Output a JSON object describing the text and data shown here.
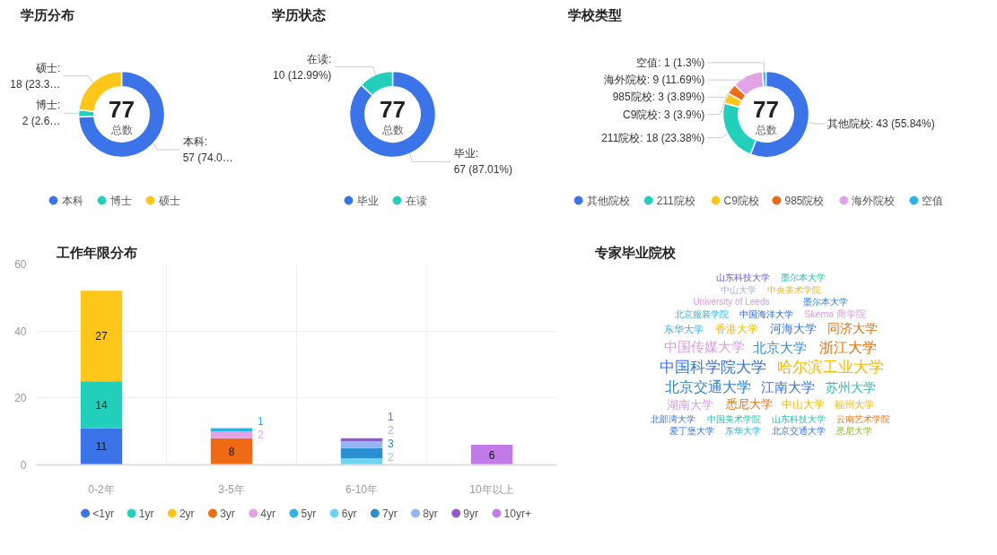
{
  "chart_data": [
    {
      "type": "donut",
      "title": "学历分布",
      "categories": [
        "本科",
        "博士",
        "硕士"
      ],
      "values": [
        57,
        2,
        18
      ],
      "colors": [
        "#3b73e8",
        "#22cfbb",
        "#fec619"
      ],
      "value_labels": [
        "本科:\n57 (74.0…",
        "博士:\n2 (2.6…",
        "硕士:\n18 (23.3…"
      ],
      "annotations": [
        "77",
        "总数"
      ],
      "legend": "bottom"
    },
    {
      "type": "donut",
      "title": "学历状态",
      "categories": [
        "毕业",
        "在读"
      ],
      "values": [
        67,
        10
      ],
      "colors": [
        "#3b73e8",
        "#22cfbb"
      ],
      "value_labels": [
        "毕业:\n67 (87.01%)",
        "在读:\n10 (12.99%)"
      ],
      "annotations": [
        "77",
        "总数"
      ],
      "legend": "bottom"
    },
    {
      "type": "donut",
      "title": "学校类型",
      "categories": [
        "其他院校",
        "211院校",
        "C9院校",
        "985院校",
        "海外院校",
        "空值"
      ],
      "values": [
        43,
        18,
        3,
        3,
        9,
        1
      ],
      "colors": [
        "#3b73e8",
        "#22cfbb",
        "#fec619",
        "#ee6a14",
        "#e0a4e6",
        "#2cb3e8"
      ],
      "value_labels": [
        "其他院校: 43 (55.84%)",
        "211院校: 18 (23.38%)",
        "C9院校: 3 (3.9%)",
        "985院校: 3 (3.89%)",
        "海外院校: 9 (11.69%)",
        "空值: 1 (1.3%)"
      ],
      "annotations": [
        "77",
        "总数"
      ],
      "legend": "bottom"
    },
    {
      "type": "bar",
      "title": "工作年限分布",
      "categories": [
        "0-2年",
        "3-5年",
        "6-10年",
        "10年以上"
      ],
      "stacked": true,
      "ylim": [
        0,
        60
      ],
      "yticks": [
        0,
        20,
        40,
        60
      ],
      "grid": true,
      "legend": "bottom",
      "data_labels": true,
      "series": [
        {
          "name": "<1yr",
          "color": "#3b73e8",
          "values": [
            11,
            null,
            null,
            null
          ]
        },
        {
          "name": "1yr",
          "color": "#22cfbb",
          "values": [
            14,
            null,
            null,
            null
          ]
        },
        {
          "name": "2yr",
          "color": "#fec619",
          "values": [
            27,
            null,
            null,
            null
          ]
        },
        {
          "name": "3yr",
          "color": "#ee6a14",
          "values": [
            null,
            8,
            null,
            null
          ]
        },
        {
          "name": "4yr",
          "color": "#e0a4e6",
          "values": [
            null,
            2,
            null,
            null
          ]
        },
        {
          "name": "5yr",
          "color": "#2cb3e8",
          "values": [
            null,
            1,
            null,
            null
          ]
        },
        {
          "name": "6yr",
          "color": "#6fd3ee",
          "values": [
            null,
            null,
            2,
            null
          ]
        },
        {
          "name": "7yr",
          "color": "#2a8fd0",
          "values": [
            null,
            null,
            3,
            null
          ]
        },
        {
          "name": "8yr",
          "color": "#93b5f5",
          "values": [
            null,
            null,
            2,
            null
          ]
        },
        {
          "name": "9yr",
          "color": "#8e5cd0",
          "values": [
            null,
            null,
            1,
            null
          ]
        },
        {
          "name": "10yr+",
          "color": "#c27ae8",
          "values": [
            null,
            null,
            null,
            6
          ]
        }
      ]
    },
    {
      "type": "other",
      "title": "专家毕业院校",
      "annotations": [
        "中国科学院大学",
        "哈尔滨工业大学",
        "浙江大学",
        "北京交通大学",
        "北京大学",
        "江南大学",
        "中国传媒大学",
        "苏州大学",
        "同济大学",
        "湖南大学",
        "河海大学",
        "悉尼大学",
        "香港大学",
        "中山大学",
        "东华大学",
        "福州大学",
        "Skema 商学院",
        "北部湾大学",
        "中国海洋大学",
        "中国美术学院",
        "北京服装学院",
        "山东科技大学",
        "墨尔本大学",
        "云南艺术学院",
        "University of Leeds",
        "爱丁堡大学",
        "中央美术学院",
        "东华大学",
        "中山大学",
        "北京交通大学",
        "墨尔本大学",
        "悉尼大学",
        "山东科技大学"
      ],
      "colors": [
        "#3b73e8",
        "#f5b800",
        "#e8700f",
        "#2e7fd1",
        "#2f8fdc",
        "#3a6fe0",
        "#d79be0",
        "#22c3a6",
        "#e8700f",
        "#d79be0",
        "#3a6fe0",
        "#e8700f",
        "#f5b800",
        "#f5b800",
        "#2cb0e0",
        "#f5b800",
        "#d79be0",
        "#3a6fe0",
        "#2e5fd0",
        "#22c3a6",
        "#2cb0e0",
        "#22c3a6",
        "#2e7fd1",
        "#e8700f",
        "#d79be0",
        "#3a6fe0",
        "#f5b800",
        "#2cb0e0",
        "#93b5f5",
        "#3a6fe0",
        "#22c3a6",
        "#8bb33a",
        "#6a5acd"
      ]
    }
  ]
}
